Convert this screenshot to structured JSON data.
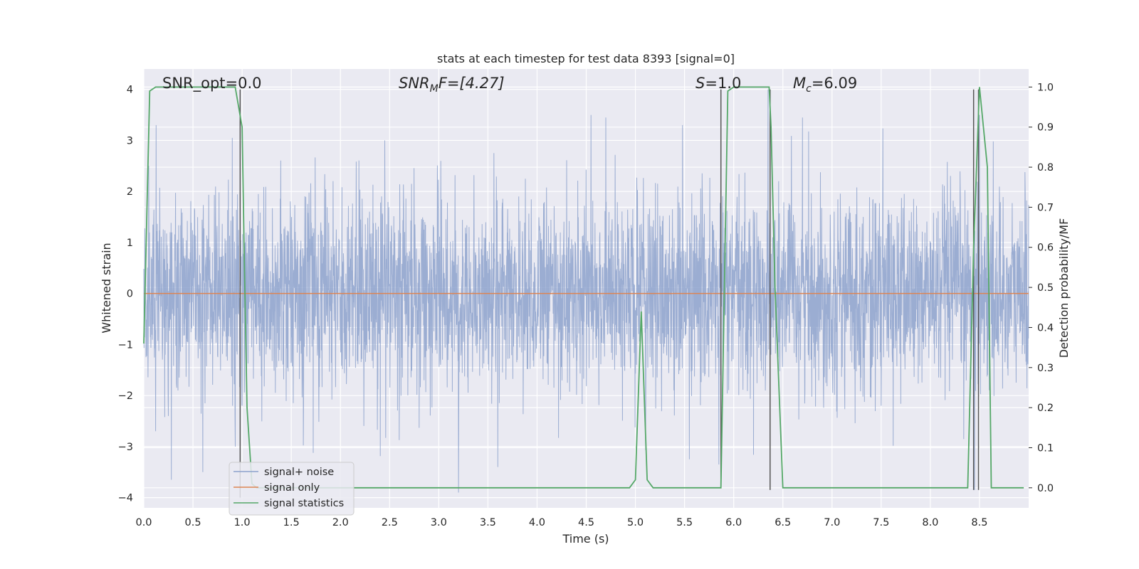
{
  "chart_data": {
    "type": "line",
    "title": "stats at each timestep for test data 8393 [signal=0]",
    "xlabel": "Time (s)",
    "ylabel": "Whitened strain",
    "ylabel_right": "Detection probability/MF",
    "xlim": [
      0.0,
      9.0
    ],
    "ylim": [
      -4.2,
      4.4
    ],
    "ylim_right": [
      -0.05,
      1.045
    ],
    "x_ticks": [
      "0.0",
      "0.5",
      "1.0",
      "1.5",
      "2.0",
      "2.5",
      "3.0",
      "3.5",
      "4.0",
      "4.5",
      "5.0",
      "5.5",
      "6.0",
      "6.5",
      "7.0",
      "7.5",
      "8.0",
      "8.5"
    ],
    "y_ticks": [
      "4",
      "3",
      "2",
      "1",
      "0",
      "−1",
      "−2",
      "−3",
      "−4"
    ],
    "y_ticks_right": [
      "1.0",
      "0.9",
      "0.8",
      "0.7",
      "0.6",
      "0.5",
      "0.4",
      "0.3",
      "0.2",
      "0.1",
      "0.0"
    ],
    "grid": true,
    "legend_position": "lower-left",
    "annotations": {
      "snr_opt": "SNR_opt=0.0",
      "snr_mf_base": "SNR",
      "snr_mf_sub": "M",
      "snr_mf_rest": "F=[4.27]",
      "s_label": "S",
      "s_rest": "=1.0",
      "mc_base": "M",
      "mc_sub": "c",
      "mc_rest": "=6.09"
    },
    "series": [
      {
        "name": "signal+ noise",
        "color": "#8da2cc",
        "axis": "left",
        "note": "dense whitened noise trace, amplitude mostly within ±2.5",
        "envelope_peaks": [
          [
            0.05,
            2.5
          ],
          [
            0.25,
            -2.4
          ],
          [
            0.28,
            -3.65
          ],
          [
            0.6,
            -3.5
          ],
          [
            0.9,
            3.05
          ],
          [
            0.93,
            -3.0
          ],
          [
            1.0,
            -2.2
          ],
          [
            2.45,
            3.0
          ],
          [
            3.2,
            -3.9
          ],
          [
            3.6,
            -3.4
          ],
          [
            4.55,
            3.5
          ],
          [
            4.7,
            3.45
          ],
          [
            5.55,
            -3.25
          ],
          [
            5.85,
            -3.35
          ],
          [
            6.35,
            4.0
          ],
          [
            6.7,
            3.45
          ],
          [
            8.5,
            3.5
          ],
          [
            8.45,
            -3.85
          ]
        ]
      },
      {
        "name": "signal only",
        "color": "#dd8452",
        "axis": "left",
        "x": [
          0.0,
          9.0
        ],
        "y": [
          0.0,
          0.0
        ]
      },
      {
        "name": "signal statistics",
        "color": "#55a868",
        "axis": "right",
        "x": [
          0.0,
          0.06,
          0.12,
          0.2,
          0.3,
          0.5,
          0.7,
          0.93,
          1.0,
          1.02,
          1.05,
          1.1,
          1.15,
          1.2,
          1.5,
          2.0,
          3.0,
          4.0,
          4.5,
          4.94,
          5.0,
          5.06,
          5.12,
          5.18,
          5.3,
          5.5,
          5.87,
          5.94,
          6.0,
          6.1,
          6.36,
          6.38,
          6.42,
          6.5,
          6.6,
          7.0,
          8.0,
          8.38,
          8.44,
          8.5,
          8.58,
          8.62,
          8.7,
          8.95
        ],
        "y": [
          0.36,
          0.99,
          1.0,
          1.0,
          1.0,
          1.0,
          1.0,
          1.0,
          0.9,
          0.6,
          0.2,
          0.01,
          0.0,
          0.0,
          0.0,
          0.0,
          0.0,
          0.0,
          0.0,
          0.0,
          0.02,
          0.44,
          0.02,
          0.0,
          0.0,
          0.0,
          0.0,
          0.99,
          1.0,
          1.0,
          1.0,
          0.9,
          0.5,
          0.0,
          0.0,
          0.0,
          0.0,
          0.0,
          0.6,
          1.0,
          0.8,
          0.0,
          0.0,
          0.0
        ]
      }
    ],
    "vertical_markers": {
      "color": "#555555",
      "lines": [
        {
          "x": 0.98,
          "y_from": -4.0,
          "y_to": 4.0
        },
        {
          "x": 5.87,
          "y_from": -3.8,
          "y_to": 4.0
        },
        {
          "x": 6.37,
          "y_from": -3.85,
          "y_to": 4.0
        },
        {
          "x": 8.44,
          "y_from": -3.85,
          "y_to": 4.0
        },
        {
          "x": 8.49,
          "y_from": -3.85,
          "y_to": 4.0
        }
      ]
    }
  }
}
